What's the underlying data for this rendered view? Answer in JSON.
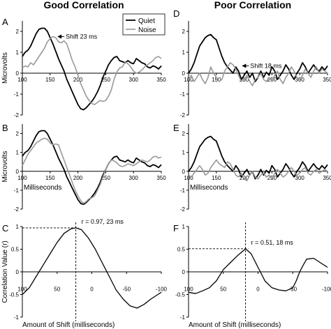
{
  "titles": {
    "left": "Good Correlation",
    "right": "Poor Correlation"
  },
  "legend": {
    "quiet": "Quiet",
    "noise": "Noise"
  },
  "colors": {
    "quiet": "#000000",
    "noise": "#999999"
  },
  "chart_data": [
    {
      "panel": "A",
      "type": "line",
      "ylabel": "Microvolts",
      "xlabel": "",
      "xlim": [
        100,
        350
      ],
      "ylim": [
        -2,
        2.5
      ],
      "xticks": [
        "100",
        "150",
        "200",
        "250",
        "300",
        "350"
      ],
      "yticks": [
        "2",
        "1",
        "0",
        "-1",
        "-2"
      ],
      "annotation": "Shift 23 ms",
      "series": [
        {
          "name": "Quiet",
          "x": [
            100,
            105,
            110,
            115,
            120,
            125,
            130,
            135,
            140,
            145,
            150,
            155,
            160,
            165,
            170,
            175,
            180,
            185,
            190,
            195,
            200,
            205,
            210,
            215,
            220,
            225,
            230,
            235,
            240,
            245,
            250,
            255,
            260,
            265,
            270,
            275,
            280,
            285,
            290,
            295,
            300,
            305,
            310,
            315,
            320,
            325,
            330,
            335,
            340,
            345,
            350
          ],
          "y": [
            0.8,
            1.0,
            1.1,
            1.3,
            1.6,
            1.9,
            2.1,
            2.15,
            2.15,
            2.0,
            1.7,
            1.4,
            1.05,
            0.7,
            0.4,
            0.1,
            -0.3,
            -0.6,
            -0.9,
            -1.2,
            -1.5,
            -1.7,
            -1.75,
            -1.65,
            -1.5,
            -1.35,
            -1.15,
            -0.9,
            -0.6,
            -0.2,
            0.1,
            0.4,
            0.6,
            0.75,
            0.8,
            0.6,
            0.55,
            0.5,
            0.6,
            0.5,
            0.45,
            0.7,
            0.6,
            0.5,
            0.45,
            0.3,
            0.25,
            0.35,
            0.3,
            0.2,
            0.35
          ]
        },
        {
          "name": "Noise",
          "x": [
            100,
            105,
            110,
            115,
            120,
            125,
            130,
            135,
            140,
            145,
            150,
            155,
            160,
            165,
            170,
            175,
            180,
            185,
            190,
            195,
            200,
            205,
            210,
            215,
            220,
            225,
            230,
            235,
            240,
            245,
            250,
            255,
            260,
            265,
            270,
            275,
            280,
            285,
            290,
            295,
            300,
            305,
            310,
            315,
            320,
            325,
            330,
            335,
            340,
            345,
            350
          ],
          "y": [
            0.25,
            0.35,
            0.3,
            0.5,
            0.4,
            0.6,
            0.8,
            1.0,
            1.2,
            1.5,
            1.65,
            1.75,
            1.7,
            1.5,
            1.45,
            1.55,
            1.4,
            1.0,
            0.6,
            0.3,
            -0.1,
            -0.5,
            -0.8,
            -1.1,
            -1.3,
            -1.45,
            -1.5,
            -1.4,
            -1.3,
            -1.35,
            -1.3,
            -1.1,
            -0.8,
            -0.3,
            0.05,
            0.25,
            0.3,
            0.55,
            0.45,
            0.3,
            0.1,
            0.0,
            0.05,
            0.15,
            0.3,
            0.4,
            0.5,
            0.6,
            0.75,
            0.8,
            0.7
          ]
        }
      ]
    },
    {
      "panel": "B",
      "type": "line",
      "ylabel": "Microvolts",
      "xlabel": "Milliseconds",
      "xlim": [
        100,
        350
      ],
      "ylim": [
        -2,
        2.5
      ],
      "xticks": [
        "100",
        "150",
        "200",
        "250",
        "300",
        "350"
      ],
      "yticks": [
        "2",
        "1",
        "0",
        "-1",
        "-2"
      ],
      "series": [
        {
          "name": "Quiet",
          "x": [
            100,
            105,
            110,
            115,
            120,
            125,
            130,
            135,
            140,
            145,
            150,
            155,
            160,
            165,
            170,
            175,
            180,
            185,
            190,
            195,
            200,
            205,
            210,
            215,
            220,
            225,
            230,
            235,
            240,
            245,
            250,
            255,
            260,
            265,
            270,
            275,
            280,
            285,
            290,
            295,
            300,
            305,
            310,
            315,
            320,
            325,
            330,
            335,
            340,
            345,
            350
          ],
          "y": [
            0.8,
            1.0,
            1.1,
            1.3,
            1.6,
            1.9,
            2.1,
            2.15,
            2.15,
            2.0,
            1.7,
            1.4,
            1.05,
            0.7,
            0.4,
            0.1,
            -0.3,
            -0.6,
            -0.9,
            -1.2,
            -1.5,
            -1.7,
            -1.75,
            -1.65,
            -1.5,
            -1.35,
            -1.15,
            -0.9,
            -0.6,
            -0.2,
            0.1,
            0.4,
            0.6,
            0.75,
            0.8,
            0.6,
            0.55,
            0.5,
            0.6,
            0.5,
            0.45,
            0.7,
            0.6,
            0.5,
            0.45,
            0.3,
            0.25,
            0.35,
            0.3,
            0.2,
            0.35
          ]
        },
        {
          "name": "Noise",
          "x": [
            100,
            105,
            110,
            115,
            120,
            125,
            130,
            135,
            140,
            145,
            150,
            155,
            160,
            165,
            170,
            175,
            180,
            185,
            190,
            195,
            200,
            205,
            210,
            215,
            220,
            225,
            230,
            235,
            240,
            245,
            250,
            255,
            260,
            265,
            270,
            275,
            280,
            285,
            290,
            295,
            300,
            305,
            310,
            315,
            320,
            325,
            330,
            335,
            340,
            345,
            350
          ],
          "y": [
            0.3,
            0.6,
            0.9,
            1.1,
            1.3,
            1.5,
            1.6,
            1.7,
            1.75,
            1.7,
            1.5,
            1.4,
            1.45,
            1.4,
            1.0,
            0.6,
            0.2,
            -0.2,
            -0.6,
            -1.0,
            -1.3,
            -1.55,
            -1.7,
            -1.6,
            -1.45,
            -1.4,
            -1.3,
            -1.0,
            -0.7,
            -0.3,
            0.1,
            0.4,
            0.6,
            0.55,
            0.45,
            0.3,
            0.25,
            0.3,
            0.4,
            0.35,
            0.3,
            0.4,
            0.5,
            0.6,
            0.55,
            0.5,
            0.6,
            0.75,
            0.8,
            0.7,
            0.75
          ]
        }
      ]
    },
    {
      "panel": "C",
      "type": "line",
      "ylabel": "Correlation Value (r)",
      "xlabel": "Amount of Shift (milliseconds)",
      "xlim": [
        100,
        -100
      ],
      "ylim": [
        -1,
        1
      ],
      "xticks": [
        "100",
        "50",
        "0",
        "-50",
        "-100"
      ],
      "yticks": [
        "1",
        "0.5",
        "0",
        "-0.5",
        "-1"
      ],
      "annotation": "r = 0.97, 23 ms",
      "peak": {
        "x": 23,
        "y": 0.97
      },
      "series": [
        {
          "name": "",
          "x": [
            100,
            90,
            80,
            70,
            60,
            50,
            40,
            30,
            23,
            15,
            5,
            -5,
            -15,
            -25,
            -35,
            -45,
            -55,
            -65,
            -75,
            -85,
            -95,
            -100
          ],
          "y": [
            -0.5,
            -0.35,
            -0.1,
            0.15,
            0.4,
            0.65,
            0.85,
            0.95,
            0.97,
            0.93,
            0.75,
            0.5,
            0.2,
            -0.1,
            -0.4,
            -0.6,
            -0.75,
            -0.8,
            -0.72,
            -0.6,
            -0.5,
            -0.45
          ]
        }
      ]
    },
    {
      "panel": "D",
      "type": "line",
      "ylabel": "",
      "xlabel": "",
      "xlim": [
        100,
        350
      ],
      "ylim": [
        -2,
        2.5
      ],
      "xticks": [
        "100",
        "150",
        "200",
        "250",
        "300",
        "350"
      ],
      "yticks": [
        "2",
        "1",
        "0",
        "-1",
        "-2"
      ],
      "annotation": "Shift 18 ms",
      "series": [
        {
          "name": "Quiet",
          "x": [
            100,
            105,
            110,
            115,
            120,
            125,
            130,
            135,
            140,
            145,
            150,
            155,
            160,
            165,
            170,
            175,
            180,
            185,
            190,
            195,
            200,
            205,
            210,
            215,
            220,
            225,
            230,
            235,
            240,
            245,
            250,
            255,
            260,
            265,
            270,
            275,
            280,
            285,
            290,
            295,
            300,
            305,
            310,
            315,
            320,
            325,
            330,
            335,
            340,
            345,
            350
          ],
          "y": [
            0.0,
            0.2,
            0.5,
            0.9,
            1.3,
            1.5,
            1.7,
            1.8,
            1.85,
            1.7,
            1.6,
            1.2,
            0.8,
            0.5,
            0.3,
            0.15,
            0.0,
            0.3,
            0.1,
            -0.3,
            -0.1,
            0.1,
            -0.2,
            0.0,
            -0.4,
            -0.2,
            0.1,
            -0.2,
            0.05,
            -0.1,
            0.3,
            0.1,
            -0.3,
            -0.1,
            0.1,
            0.4,
            0.2,
            -0.1,
            -0.3,
            0.0,
            0.2,
            0.5,
            0.3,
            0.0,
            0.2,
            0.4,
            0.2,
            0.1,
            0.3,
            0.15,
            0.35
          ]
        },
        {
          "name": "Noise",
          "x": [
            100,
            105,
            110,
            115,
            120,
            125,
            130,
            135,
            140,
            145,
            150,
            155,
            160,
            165,
            170,
            175,
            180,
            185,
            190,
            195,
            200,
            205,
            210,
            215,
            220,
            225,
            230,
            235,
            240,
            245,
            250,
            255,
            260,
            265,
            270,
            275,
            280,
            285,
            290,
            295,
            300,
            305,
            310,
            315,
            320,
            325,
            330,
            335,
            340,
            345,
            350
          ],
          "y": [
            -0.3,
            -0.1,
            -0.4,
            -0.2,
            0.0,
            -0.3,
            -0.5,
            -0.2,
            0.3,
            0.0,
            -0.2,
            -0.4,
            -0.3,
            0.1,
            0.3,
            0.5,
            0.4,
            0.2,
            -0.1,
            -0.4,
            -0.3,
            -0.1,
            -0.4,
            -0.6,
            -0.3,
            -0.2,
            0.0,
            -0.3,
            -0.4,
            -0.2,
            -0.4,
            -0.1,
            0.1,
            -0.3,
            -0.5,
            -0.2,
            0.0,
            0.3,
            0.1,
            -0.2,
            -0.3,
            -0.1,
            0.2,
            0.0,
            -0.2,
            0.1,
            0.3,
            0.0,
            0.2,
            0.1,
            0.0
          ]
        }
      ]
    },
    {
      "panel": "E",
      "type": "line",
      "ylabel": "",
      "xlabel": "Milliseconds",
      "xlim": [
        100,
        350
      ],
      "ylim": [
        -2,
        2.5
      ],
      "xticks": [
        "100",
        "150",
        "200",
        "250",
        "300",
        "350"
      ],
      "yticks": [
        "2",
        "1",
        "0",
        "-1",
        "-2"
      ],
      "series": [
        {
          "name": "Quiet",
          "x": [
            100,
            105,
            110,
            115,
            120,
            125,
            130,
            135,
            140,
            145,
            150,
            155,
            160,
            165,
            170,
            175,
            180,
            185,
            190,
            195,
            200,
            205,
            210,
            215,
            220,
            225,
            230,
            235,
            240,
            245,
            250,
            255,
            260,
            265,
            270,
            275,
            280,
            285,
            290,
            295,
            300,
            305,
            310,
            315,
            320,
            325,
            330,
            335,
            340,
            345,
            350
          ],
          "y": [
            0.0,
            0.2,
            0.5,
            0.9,
            1.3,
            1.5,
            1.7,
            1.8,
            1.85,
            1.7,
            1.6,
            1.2,
            0.8,
            0.5,
            0.3,
            0.15,
            0.0,
            0.3,
            0.1,
            -0.3,
            -0.1,
            0.1,
            -0.2,
            0.0,
            -0.4,
            -0.2,
            0.1,
            -0.2,
            0.05,
            -0.1,
            0.3,
            0.1,
            -0.3,
            -0.1,
            0.1,
            0.4,
            0.2,
            -0.1,
            -0.3,
            0.0,
            0.2,
            0.5,
            0.3,
            0.0,
            0.2,
            0.4,
            0.2,
            0.1,
            0.3,
            0.15,
            0.35
          ]
        },
        {
          "name": "Noise",
          "x": [
            100,
            105,
            110,
            115,
            120,
            125,
            130,
            135,
            140,
            145,
            150,
            155,
            160,
            165,
            170,
            175,
            180,
            185,
            190,
            195,
            200,
            205,
            210,
            215,
            220,
            225,
            230,
            235,
            240,
            245,
            250,
            255,
            260,
            265,
            270,
            275,
            280,
            285,
            290,
            295,
            300,
            305,
            310,
            315,
            320,
            325,
            330,
            335,
            340,
            345,
            350
          ],
          "y": [
            -0.2,
            -0.3,
            -0.1,
            0.1,
            0.3,
            0.1,
            -0.2,
            -0.1,
            0.2,
            0.4,
            0.6,
            0.4,
            0.3,
            0.2,
            0.5,
            0.4,
            0.1,
            -0.2,
            -0.3,
            -0.1,
            -0.4,
            -0.5,
            -0.2,
            0.0,
            -0.3,
            -0.4,
            -0.2,
            -0.1,
            -0.3,
            -0.2,
            -0.4,
            -0.1,
            0.1,
            -0.1,
            -0.3,
            -0.2,
            0.0,
            0.2,
            0.0,
            -0.2,
            -0.1,
            0.1,
            0.2,
            -0.1,
            -0.2,
            0.0,
            0.1,
            -0.1,
            0.0,
            0.1,
            0.0
          ]
        }
      ]
    },
    {
      "panel": "F",
      "type": "line",
      "ylabel": "",
      "xlabel": "Amount of Shift (milliseconds)",
      "xlim": [
        100,
        -100
      ],
      "ylim": [
        -1,
        1
      ],
      "xticks": [
        "100",
        "50",
        "0",
        "-50",
        "-100"
      ],
      "yticks": [
        "1",
        "0.5",
        "0",
        "-0.5",
        "-1"
      ],
      "annotation": "r = 0.51, 18 ms",
      "peak": {
        "x": 18,
        "y": 0.51
      },
      "series": [
        {
          "name": "",
          "x": [
            100,
            90,
            80,
            70,
            60,
            50,
            40,
            30,
            18,
            10,
            0,
            -10,
            -20,
            -30,
            -40,
            -50,
            -55,
            -60,
            -65,
            -70,
            -80,
            -90,
            -100
          ],
          "y": [
            -0.45,
            -0.48,
            -0.42,
            -0.35,
            -0.2,
            0.05,
            0.2,
            0.35,
            0.51,
            0.4,
            0.1,
            -0.2,
            -0.35,
            -0.4,
            -0.42,
            -0.35,
            -0.2,
            0.0,
            0.15,
            0.28,
            0.3,
            0.2,
            0.1
          ]
        }
      ]
    }
  ]
}
